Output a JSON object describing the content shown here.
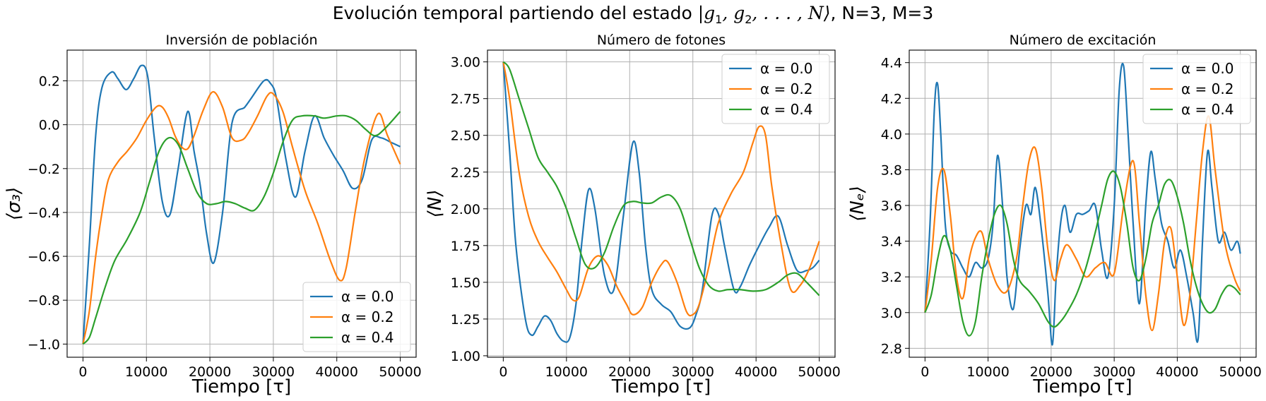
{
  "figure": {
    "suptitle_prefix": "Evolución temporal partiendo del estado ",
    "suptitle_state": "|g",
    "suptitle_sub1": "1",
    "suptitle_mid": ", g",
    "suptitle_sub2": "2",
    "suptitle_rest": ", . . . , N⟩",
    "suptitle_suffix": ", N=3, M=3"
  },
  "colors": {
    "alpha_0_0": "#1f77b4",
    "alpha_0_2": "#ff7f0e",
    "alpha_0_4": "#2ca02c",
    "grid": "#b0b0b0"
  },
  "chart_data": [
    {
      "type": "line",
      "title": "Inversión de población",
      "xlabel": "Tiempo [τ]",
      "ylabel": "⟨σ₃⟩",
      "xlim": [
        -2500,
        52500
      ],
      "ylim": [
        -1.06,
        0.34
      ],
      "xticks": [
        0,
        10000,
        20000,
        30000,
        40000,
        50000
      ],
      "yticks": [
        -1.0,
        -0.8,
        -0.6,
        -0.4,
        -0.2,
        0.0,
        0.2
      ],
      "ytick_labels": [
        "−1.0",
        "−0.8",
        "−0.6",
        "−0.4",
        "−0.2",
        "0.0",
        "0.2"
      ],
      "grid": true,
      "legend_position": "lower-right",
      "series": [
        {
          "name": "α = 0.0",
          "x": [
            0,
            1000,
            2000,
            3000,
            4500,
            5500,
            6800,
            8000,
            9200,
            10200,
            11200,
            12500,
            13700,
            15000,
            16500,
            17500,
            18500,
            19500,
            20600,
            22000,
            23500,
            25500,
            26500,
            28500,
            29500,
            30500,
            32000,
            33500,
            35000,
            36500,
            38000,
            39500,
            41000,
            42500,
            44000,
            45500,
            47000,
            48500,
            50000
          ],
          "y": [
            -1.0,
            -0.55,
            -0.05,
            0.17,
            0.24,
            0.21,
            0.16,
            0.21,
            0.27,
            0.22,
            -0.05,
            -0.35,
            -0.41,
            -0.2,
            0.06,
            -0.12,
            -0.28,
            -0.5,
            -0.63,
            -0.4,
            0.01,
            0.08,
            0.12,
            0.2,
            0.19,
            0.12,
            -0.16,
            -0.33,
            -0.12,
            0.04,
            -0.06,
            -0.14,
            -0.21,
            -0.29,
            -0.25,
            -0.07,
            -0.06,
            -0.08,
            -0.1
          ]
        },
        {
          "name": "α = 0.2",
          "x": [
            0,
            1000,
            2000,
            3000,
            4000,
            5500,
            7000,
            8500,
            10000,
            11500,
            12500,
            13500,
            14500,
            15500,
            16500,
            17500,
            19000,
            20500,
            22000,
            23500,
            25000,
            26000,
            27500,
            29000,
            30000,
            31500,
            33000,
            35000,
            37000,
            39000,
            40500,
            41500,
            43000,
            44500,
            46500,
            48000,
            50000
          ],
          "y": [
            -1.0,
            -0.85,
            -0.6,
            -0.4,
            -0.25,
            -0.17,
            -0.12,
            -0.06,
            0.02,
            0.08,
            0.08,
            0.03,
            -0.05,
            -0.1,
            -0.11,
            -0.05,
            0.07,
            0.15,
            0.08,
            -0.06,
            -0.07,
            -0.04,
            0.04,
            0.13,
            0.14,
            0.06,
            -0.1,
            -0.3,
            -0.45,
            -0.62,
            -0.71,
            -0.65,
            -0.38,
            -0.14,
            0.05,
            -0.05,
            -0.18
          ]
        },
        {
          "name": "α = 0.4",
          "x": [
            0,
            1000,
            2000,
            3500,
            5000,
            7000,
            9000,
            10500,
            12000,
            13500,
            15000,
            16500,
            18000,
            19500,
            21000,
            22500,
            24000,
            25500,
            27000,
            28500,
            30000,
            31500,
            33000,
            34500,
            36500,
            38000,
            40000,
            41500,
            43000,
            44500,
            46000,
            47500,
            50000
          ],
          "y": [
            -1.0,
            -0.97,
            -0.88,
            -0.74,
            -0.62,
            -0.52,
            -0.4,
            -0.26,
            -0.12,
            -0.06,
            -0.09,
            -0.2,
            -0.31,
            -0.36,
            -0.36,
            -0.35,
            -0.36,
            -0.38,
            -0.39,
            -0.33,
            -0.22,
            -0.08,
            0.02,
            0.04,
            0.04,
            0.03,
            0.04,
            0.04,
            0.02,
            -0.02,
            -0.05,
            -0.02,
            0.06
          ]
        }
      ]
    },
    {
      "type": "line",
      "title": "Número de  fotones",
      "xlabel": "Tiempo [τ]",
      "ylabel": "⟨N⟩",
      "xlim": [
        -2500,
        52500
      ],
      "ylim": [
        0.99,
        3.08
      ],
      "xticks": [
        0,
        10000,
        20000,
        30000,
        40000,
        50000
      ],
      "yticks": [
        1.0,
        1.25,
        1.5,
        1.75,
        2.0,
        2.25,
        2.5,
        2.75,
        3.0
      ],
      "ytick_labels": [
        "1.00",
        "1.25",
        "1.50",
        "1.75",
        "2.00",
        "2.25",
        "2.50",
        "2.75",
        "3.00"
      ],
      "grid": true,
      "legend_position": "upper-right",
      "series": [
        {
          "name": "α = 0.0",
          "x": [
            0,
            1000,
            2000,
            3500,
            4500,
            5500,
            6500,
            7500,
            8500,
            9500,
            10500,
            11500,
            12500,
            13500,
            14500,
            16000,
            17500,
            19000,
            20500,
            21500,
            22500,
            23500,
            25000,
            26500,
            28000,
            29500,
            30500,
            31500,
            33000,
            34000,
            35000,
            36500,
            37500,
            39000,
            40500,
            42000,
            43500,
            45000,
            46500,
            48000,
            49000,
            50000
          ],
          "y": [
            3.0,
            2.4,
            1.75,
            1.25,
            1.14,
            1.2,
            1.27,
            1.24,
            1.15,
            1.1,
            1.12,
            1.35,
            1.8,
            2.13,
            2.0,
            1.55,
            1.45,
            1.95,
            2.45,
            2.25,
            1.75,
            1.45,
            1.35,
            1.3,
            1.2,
            1.19,
            1.28,
            1.45,
            1.95,
            1.97,
            1.75,
            1.45,
            1.47,
            1.62,
            1.75,
            1.87,
            1.95,
            1.75,
            1.58,
            1.58,
            1.6,
            1.65
          ]
        },
        {
          "name": "α = 0.2",
          "x": [
            0,
            1000,
            2500,
            4000,
            5500,
            7000,
            8500,
            10000,
            11000,
            12000,
            13500,
            15000,
            16500,
            18000,
            19500,
            20500,
            22000,
            23500,
            25000,
            26000,
            27500,
            29000,
            30000,
            31000,
            32500,
            34000,
            36000,
            38000,
            39500,
            40500,
            41500,
            42500,
            44000,
            45500,
            47000,
            48500,
            50000
          ],
          "y": [
            3.0,
            2.75,
            2.25,
            1.95,
            1.78,
            1.67,
            1.57,
            1.45,
            1.38,
            1.4,
            1.6,
            1.68,
            1.62,
            1.47,
            1.35,
            1.28,
            1.33,
            1.5,
            1.62,
            1.64,
            1.5,
            1.3,
            1.28,
            1.35,
            1.6,
            1.9,
            2.1,
            2.25,
            2.45,
            2.56,
            2.5,
            2.15,
            1.75,
            1.45,
            1.48,
            1.6,
            1.78
          ]
        },
        {
          "name": "α = 0.4",
          "x": [
            0,
            1000,
            2500,
            4000,
            5500,
            7000,
            8500,
            10000,
            11500,
            13000,
            14500,
            16000,
            17500,
            19000,
            20500,
            22000,
            23500,
            25000,
            26500,
            28000,
            29500,
            31000,
            32500,
            34000,
            35500,
            37500,
            39500,
            41500,
            43500,
            45000,
            46500,
            48000,
            50000
          ],
          "y": [
            3.0,
            2.95,
            2.75,
            2.55,
            2.35,
            2.25,
            2.15,
            2.0,
            1.8,
            1.62,
            1.6,
            1.7,
            1.88,
            2.02,
            2.05,
            2.04,
            2.04,
            2.08,
            2.09,
            2.0,
            1.8,
            1.6,
            1.48,
            1.44,
            1.45,
            1.45,
            1.44,
            1.45,
            1.5,
            1.55,
            1.56,
            1.5,
            1.41
          ]
        }
      ]
    },
    {
      "type": "line",
      "title": "Número de  excitación",
      "xlabel": "Tiempo [τ]",
      "ylabel": "⟨Nₑ⟩",
      "xlim": [
        -2500,
        52500
      ],
      "ylim": [
        2.75,
        4.47
      ],
      "xticks": [
        0,
        10000,
        20000,
        30000,
        40000,
        50000
      ],
      "yticks": [
        2.8,
        3.0,
        3.2,
        3.4,
        3.6,
        3.8,
        4.0,
        4.2,
        4.4
      ],
      "ytick_labels": [
        "2.8",
        "3.0",
        "3.2",
        "3.4",
        "3.6",
        "3.8",
        "4.0",
        "4.2",
        "4.4"
      ],
      "grid": true,
      "legend_position": "upper-right",
      "series": [
        {
          "name": "α = 0.0",
          "x": [
            0,
            800,
            1500,
            2000,
            2500,
            3200,
            4000,
            5000,
            6000,
            7000,
            8000,
            9000,
            10000,
            10800,
            11500,
            12300,
            13000,
            14000,
            15000,
            16000,
            16800,
            17500,
            18500,
            19500,
            20200,
            20800,
            21500,
            22200,
            23000,
            24000,
            25000,
            26000,
            27000,
            28000,
            29000,
            30000,
            30800,
            31500,
            32200,
            33000,
            34000,
            35000,
            35800,
            36500,
            37500,
            38500,
            39500,
            40500,
            41500,
            42500,
            43300,
            44000,
            44800,
            45500,
            46500,
            47500,
            48500,
            49500,
            50000
          ],
          "y": [
            3.0,
            3.5,
            4.15,
            4.28,
            4.0,
            3.5,
            3.35,
            3.32,
            3.25,
            3.2,
            3.28,
            3.25,
            3.3,
            3.5,
            3.88,
            3.6,
            3.2,
            3.02,
            3.35,
            3.6,
            3.55,
            3.7,
            3.45,
            3.1,
            2.82,
            3.2,
            3.5,
            3.6,
            3.45,
            3.55,
            3.55,
            3.57,
            3.6,
            3.35,
            3.2,
            3.6,
            4.25,
            4.38,
            4.0,
            3.5,
            3.05,
            3.6,
            3.9,
            3.75,
            3.5,
            3.4,
            3.25,
            3.35,
            3.2,
            3.0,
            2.85,
            3.4,
            3.9,
            3.7,
            3.4,
            3.45,
            3.35,
            3.4,
            3.33
          ]
        },
        {
          "name": "α = 0.2",
          "x": [
            0,
            1000,
            2000,
            3000,
            4000,
            5000,
            6000,
            7000,
            8000,
            9000,
            10000,
            11500,
            13000,
            14500,
            15500,
            16500,
            17500,
            18500,
            19500,
            20500,
            21500,
            22500,
            24000,
            25500,
            27000,
            28500,
            30000,
            31500,
            33000,
            34000,
            35000,
            36000,
            37000,
            38000,
            39000,
            40000,
            41000,
            42000,
            43000,
            44000,
            45000,
            46000,
            47500,
            49000,
            50000
          ],
          "y": [
            3.0,
            3.3,
            3.7,
            3.8,
            3.55,
            3.2,
            3.08,
            3.3,
            3.42,
            3.45,
            3.3,
            3.15,
            3.12,
            3.3,
            3.6,
            3.85,
            3.92,
            3.7,
            3.35,
            3.18,
            3.3,
            3.38,
            3.3,
            3.2,
            3.25,
            3.28,
            3.22,
            3.6,
            3.85,
            3.5,
            3.1,
            2.9,
            3.1,
            3.4,
            3.47,
            3.2,
            2.93,
            3.1,
            3.5,
            3.9,
            4.1,
            3.8,
            3.4,
            3.2,
            3.12
          ]
        },
        {
          "name": "α = 0.4",
          "x": [
            0,
            1000,
            2000,
            3000,
            4000,
            5000,
            6000,
            7000,
            8000,
            9000,
            10000,
            11000,
            12000,
            13000,
            14000,
            15000,
            16500,
            18000,
            19500,
            20500,
            21500,
            22500,
            24000,
            25500,
            27000,
            28000,
            29000,
            30000,
            31000,
            32000,
            33000,
            34000,
            35000,
            36000,
            37000,
            38000,
            39000,
            40000,
            41000,
            42000,
            43000,
            44000,
            45000,
            46000,
            47000,
            48000,
            49000,
            50000
          ],
          "y": [
            3.0,
            3.1,
            3.3,
            3.43,
            3.35,
            3.15,
            2.95,
            2.87,
            2.95,
            3.2,
            3.4,
            3.55,
            3.6,
            3.5,
            3.3,
            3.18,
            3.12,
            3.05,
            2.95,
            2.92,
            2.95,
            3.0,
            3.1,
            3.25,
            3.45,
            3.6,
            3.75,
            3.79,
            3.7,
            3.5,
            3.25,
            3.18,
            3.3,
            3.5,
            3.6,
            3.72,
            3.74,
            3.65,
            3.5,
            3.3,
            3.15,
            3.05,
            3.0,
            3.02,
            3.1,
            3.15,
            3.14,
            3.1
          ]
        }
      ]
    }
  ]
}
